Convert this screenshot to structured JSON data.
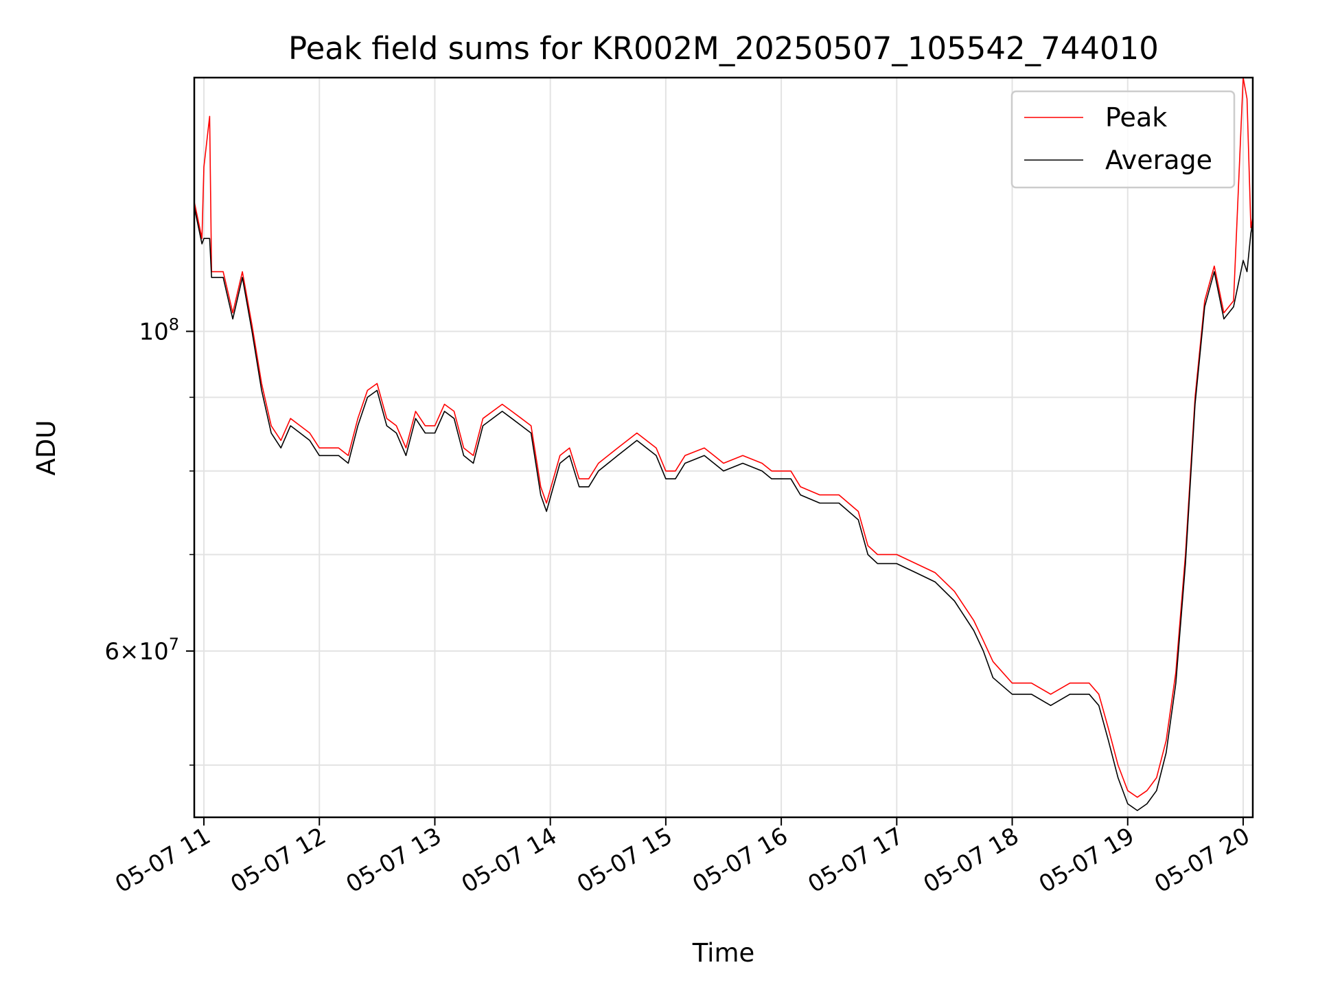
{
  "chart_data": {
    "type": "line",
    "title": "Peak field sums for KR002M_20250507_105542_744010",
    "xlabel": "Time",
    "ylabel": "ADU",
    "y_scale": "log",
    "x_range": [
      "2025-05-07 10:55",
      "2025-05-07 20:05"
    ],
    "ylim": [
      46000000,
      150000000
    ],
    "x_ticks": [
      "05-07 11",
      "05-07 12",
      "05-07 13",
      "05-07 14",
      "05-07 15",
      "05-07 16",
      "05-07 17",
      "05-07 18",
      "05-07 19",
      "05-07 20"
    ],
    "y_ticks_major": [
      {
        "value": 100000000,
        "mant": "",
        "base": "10",
        "exp": "8"
      },
      {
        "value": 60000000,
        "mant": "6×",
        "base": "10",
        "exp": "7"
      }
    ],
    "y_ticks_minor": [
      50000000,
      70000000,
      80000000,
      90000000
    ],
    "grid": true,
    "legend": {
      "placement": "top-right",
      "entries": [
        "Peak",
        "Average"
      ]
    },
    "series": [
      {
        "name": "Peak",
        "color": "#ff0000",
        "points": [
          [
            "10:55",
            123000000
          ],
          [
            "10:59",
            116000000
          ],
          [
            "11:00",
            130000000
          ],
          [
            "11:03",
            141000000
          ],
          [
            "11:04",
            110000000
          ],
          [
            "11:10",
            110000000
          ],
          [
            "11:15",
            103000000
          ],
          [
            "11:20",
            110000000
          ],
          [
            "11:25",
            101000000
          ],
          [
            "11:30",
            92000000
          ],
          [
            "11:35",
            86000000
          ],
          [
            "11:40",
            84000000
          ],
          [
            "11:45",
            87000000
          ],
          [
            "11:50",
            86000000
          ],
          [
            "11:55",
            85000000
          ],
          [
            "12:00",
            83000000
          ],
          [
            "12:10",
            83000000
          ],
          [
            "12:15",
            82000000
          ],
          [
            "12:20",
            87000000
          ],
          [
            "12:25",
            91000000
          ],
          [
            "12:30",
            92000000
          ],
          [
            "12:35",
            87000000
          ],
          [
            "12:40",
            86000000
          ],
          [
            "12:45",
            83000000
          ],
          [
            "12:50",
            88000000
          ],
          [
            "12:55",
            86000000
          ],
          [
            "13:00",
            86000000
          ],
          [
            "13:05",
            89000000
          ],
          [
            "13:10",
            88000000
          ],
          [
            "13:15",
            83000000
          ],
          [
            "13:20",
            82000000
          ],
          [
            "13:25",
            87000000
          ],
          [
            "13:35",
            89000000
          ],
          [
            "13:40",
            88000000
          ],
          [
            "13:45",
            87000000
          ],
          [
            "13:50",
            86000000
          ],
          [
            "13:55",
            78000000
          ],
          [
            "13:58",
            76000000
          ],
          [
            "14:05",
            82000000
          ],
          [
            "14:10",
            83000000
          ],
          [
            "14:15",
            79000000
          ],
          [
            "14:20",
            79000000
          ],
          [
            "14:25",
            81000000
          ],
          [
            "14:35",
            83000000
          ],
          [
            "14:45",
            85000000
          ],
          [
            "14:55",
            83000000
          ],
          [
            "15:00",
            80000000
          ],
          [
            "15:05",
            80000000
          ],
          [
            "15:10",
            82000000
          ],
          [
            "15:20",
            83000000
          ],
          [
            "15:25",
            82000000
          ],
          [
            "15:30",
            81000000
          ],
          [
            "15:40",
            82000000
          ],
          [
            "15:50",
            81000000
          ],
          [
            "15:55",
            80000000
          ],
          [
            "16:05",
            80000000
          ],
          [
            "16:10",
            78000000
          ],
          [
            "16:20",
            77000000
          ],
          [
            "16:30",
            77000000
          ],
          [
            "16:40",
            75000000
          ],
          [
            "16:45",
            71000000
          ],
          [
            "16:50",
            70000000
          ],
          [
            "17:00",
            70000000
          ],
          [
            "17:10",
            69000000
          ],
          [
            "17:20",
            68000000
          ],
          [
            "17:30",
            66000000
          ],
          [
            "17:40",
            63000000
          ],
          [
            "17:45",
            61000000
          ],
          [
            "17:50",
            59000000
          ],
          [
            "18:00",
            57000000
          ],
          [
            "18:10",
            57000000
          ],
          [
            "18:20",
            56000000
          ],
          [
            "18:30",
            57000000
          ],
          [
            "18:40",
            57000000
          ],
          [
            "18:45",
            56000000
          ],
          [
            "18:50",
            53000000
          ],
          [
            "18:55",
            50000000
          ],
          [
            "19:00",
            48000000
          ],
          [
            "19:05",
            47500000
          ],
          [
            "19:10",
            48000000
          ],
          [
            "19:15",
            49000000
          ],
          [
            "19:20",
            52000000
          ],
          [
            "19:25",
            58000000
          ],
          [
            "19:30",
            70000000
          ],
          [
            "19:35",
            90000000
          ],
          [
            "19:40",
            105000000
          ],
          [
            "19:45",
            111000000
          ],
          [
            "19:50",
            103000000
          ],
          [
            "19:55",
            105000000
          ],
          [
            "20:00",
            150000000
          ],
          [
            "20:02",
            145000000
          ],
          [
            "20:04",
            118000000
          ],
          [
            "20:05",
            120000000
          ]
        ]
      },
      {
        "name": "Average",
        "color": "#000000",
        "points": [
          [
            "10:55",
            122000000
          ],
          [
            "10:59",
            115000000
          ],
          [
            "11:00",
            116000000
          ],
          [
            "11:03",
            116000000
          ],
          [
            "11:04",
            109000000
          ],
          [
            "11:10",
            109000000
          ],
          [
            "11:15",
            102000000
          ],
          [
            "11:20",
            109000000
          ],
          [
            "11:25",
            100000000
          ],
          [
            "11:30",
            91000000
          ],
          [
            "11:35",
            85000000
          ],
          [
            "11:40",
            83000000
          ],
          [
            "11:45",
            86000000
          ],
          [
            "11:50",
            85000000
          ],
          [
            "11:55",
            84000000
          ],
          [
            "12:00",
            82000000
          ],
          [
            "12:10",
            82000000
          ],
          [
            "12:15",
            81000000
          ],
          [
            "12:20",
            86000000
          ],
          [
            "12:25",
            90000000
          ],
          [
            "12:30",
            91000000
          ],
          [
            "12:35",
            86000000
          ],
          [
            "12:40",
            85000000
          ],
          [
            "12:45",
            82000000
          ],
          [
            "12:50",
            87000000
          ],
          [
            "12:55",
            85000000
          ],
          [
            "13:00",
            85000000
          ],
          [
            "13:05",
            88000000
          ],
          [
            "13:10",
            87000000
          ],
          [
            "13:15",
            82000000
          ],
          [
            "13:20",
            81000000
          ],
          [
            "13:25",
            86000000
          ],
          [
            "13:35",
            88000000
          ],
          [
            "13:40",
            87000000
          ],
          [
            "13:45",
            86000000
          ],
          [
            "13:50",
            85000000
          ],
          [
            "13:55",
            77000000
          ],
          [
            "13:58",
            75000000
          ],
          [
            "14:05",
            81000000
          ],
          [
            "14:10",
            82000000
          ],
          [
            "14:15",
            78000000
          ],
          [
            "14:20",
            78000000
          ],
          [
            "14:25",
            80000000
          ],
          [
            "14:35",
            82000000
          ],
          [
            "14:45",
            84000000
          ],
          [
            "14:55",
            82000000
          ],
          [
            "15:00",
            79000000
          ],
          [
            "15:05",
            79000000
          ],
          [
            "15:10",
            81000000
          ],
          [
            "15:20",
            82000000
          ],
          [
            "15:25",
            81000000
          ],
          [
            "15:30",
            80000000
          ],
          [
            "15:40",
            81000000
          ],
          [
            "15:50",
            80000000
          ],
          [
            "15:55",
            79000000
          ],
          [
            "16:05",
            79000000
          ],
          [
            "16:10",
            77000000
          ],
          [
            "16:20",
            76000000
          ],
          [
            "16:30",
            76000000
          ],
          [
            "16:40",
            74000000
          ],
          [
            "16:45",
            70000000
          ],
          [
            "16:50",
            69000000
          ],
          [
            "17:00",
            69000000
          ],
          [
            "17:10",
            68000000
          ],
          [
            "17:20",
            67000000
          ],
          [
            "17:30",
            65000000
          ],
          [
            "17:40",
            62000000
          ],
          [
            "17:45",
            60000000
          ],
          [
            "17:50",
            57500000
          ],
          [
            "18:00",
            56000000
          ],
          [
            "18:10",
            56000000
          ],
          [
            "18:20",
            55000000
          ],
          [
            "18:30",
            56000000
          ],
          [
            "18:40",
            56000000
          ],
          [
            "18:45",
            55000000
          ],
          [
            "18:50",
            52000000
          ],
          [
            "18:55",
            49000000
          ],
          [
            "19:00",
            47000000
          ],
          [
            "19:05",
            46500000
          ],
          [
            "19:10",
            47000000
          ],
          [
            "19:15",
            48000000
          ],
          [
            "19:20",
            51000000
          ],
          [
            "19:25",
            57000000
          ],
          [
            "19:30",
            69000000
          ],
          [
            "19:35",
            89000000
          ],
          [
            "19:40",
            104000000
          ],
          [
            "19:45",
            110000000
          ],
          [
            "19:50",
            102000000
          ],
          [
            "19:55",
            104000000
          ],
          [
            "20:00",
            112000000
          ],
          [
            "20:02",
            110000000
          ],
          [
            "20:04",
            117000000
          ],
          [
            "20:05",
            119000000
          ]
        ]
      }
    ]
  }
}
